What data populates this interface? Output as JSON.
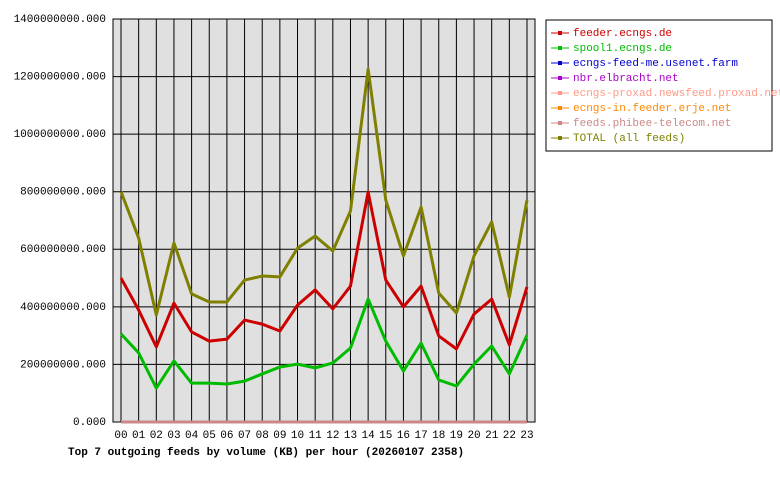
{
  "chart_data": {
    "type": "line",
    "title": "Top 7 outgoing feeds by volume (KB) per hour (20260107 2358)",
    "categories": [
      "00",
      "01",
      "02",
      "03",
      "04",
      "05",
      "06",
      "07",
      "08",
      "09",
      "10",
      "11",
      "12",
      "13",
      "14",
      "15",
      "16",
      "17",
      "18",
      "19",
      "20",
      "21",
      "22",
      "23"
    ],
    "ylim": [
      0,
      1400000000
    ],
    "yticks": [
      {
        "value": 0,
        "label": "0.000"
      },
      {
        "value": 200000000,
        "label": "200000000.000"
      },
      {
        "value": 400000000,
        "label": "400000000.000"
      },
      {
        "value": 600000000,
        "label": "600000000.000"
      },
      {
        "value": 800000000,
        "label": "800000000.000"
      },
      {
        "value": 1000000000,
        "label": "1000000000.000"
      },
      {
        "value": 1200000000,
        "label": "1200000000.000"
      },
      {
        "value": 1400000000,
        "label": "1400000000.000"
      }
    ],
    "grid": true,
    "legend": "right",
    "series": [
      {
        "name": "feeder.ecngs.de",
        "color": "#cc0000",
        "values": [
          500000000,
          389000000,
          261000000,
          413000000,
          313000000,
          281000000,
          288000000,
          354000000,
          340000000,
          316000000,
          406000000,
          459000000,
          393000000,
          472000000,
          799000000,
          493000000,
          400000000,
          472000000,
          299000000,
          254000000,
          375000000,
          427000000,
          268000000,
          469000000
        ]
      },
      {
        "name": "spool1.ecngs.de",
        "color": "#00bb00",
        "values": [
          306000000,
          240000000,
          118000000,
          212000000,
          135000000,
          135000000,
          132000000,
          142000000,
          167000000,
          191000000,
          201000000,
          188000000,
          205000000,
          257000000,
          427000000,
          281000000,
          177000000,
          274000000,
          146000000,
          125000000,
          201000000,
          264000000,
          167000000,
          302000000
        ]
      },
      {
        "name": "ecngs-feed-me.usenet.farm",
        "color": "#0000cc",
        "values": [
          0,
          0,
          0,
          0,
          0,
          0,
          0,
          0,
          0,
          0,
          0,
          0,
          0,
          0,
          0,
          0,
          0,
          0,
          0,
          0,
          0,
          0,
          0,
          0
        ]
      },
      {
        "name": "nbr.elbracht.net",
        "color": "#aa00cc",
        "values": [
          0,
          0,
          0,
          0,
          0,
          0,
          0,
          0,
          0,
          0,
          0,
          0,
          0,
          0,
          0,
          0,
          0,
          0,
          0,
          0,
          0,
          0,
          0,
          0
        ]
      },
      {
        "name": "ecngs-proxad.newsfeed.proxad.net",
        "color": "#ff9988",
        "values": [
          0,
          0,
          0,
          0,
          0,
          0,
          0,
          0,
          0,
          0,
          0,
          0,
          0,
          0,
          0,
          0,
          0,
          0,
          0,
          0,
          0,
          0,
          0,
          0
        ]
      },
      {
        "name": "ecngs-in.feeder.erje.net",
        "color": "#ff8800",
        "values": [
          0,
          0,
          0,
          0,
          0,
          0,
          0,
          0,
          0,
          0,
          0,
          0,
          0,
          0,
          0,
          0,
          0,
          0,
          0,
          0,
          0,
          0,
          0,
          0
        ]
      },
      {
        "name": "feeds.phibee-telecom.net",
        "color": "#cc8888",
        "values": [
          0,
          0,
          0,
          0,
          0,
          0,
          0,
          0,
          0,
          0,
          0,
          0,
          0,
          0,
          0,
          0,
          0,
          0,
          0,
          0,
          0,
          0,
          0,
          0
        ]
      },
      {
        "name": "TOTAL (all feeds)",
        "color": "#808000",
        "values": [
          800000000,
          639000000,
          372000000,
          622000000,
          445000000,
          417000000,
          417000000,
          493000000,
          507000000,
          504000000,
          604000000,
          646000000,
          594000000,
          733000000,
          1226000000,
          771000000,
          577000000,
          747000000,
          448000000,
          379000000,
          577000000,
          695000000,
          434000000,
          771000000
        ]
      }
    ]
  }
}
